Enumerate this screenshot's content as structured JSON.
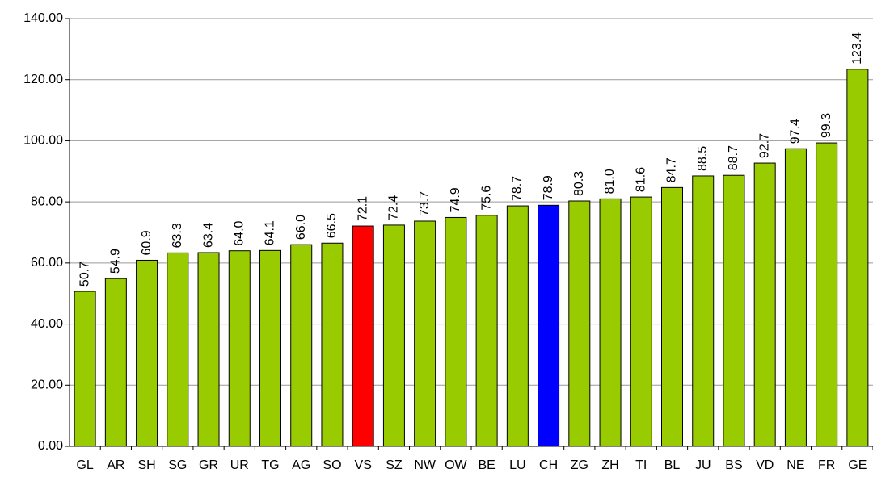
{
  "chart_data": {
    "type": "bar",
    "categories": [
      "GL",
      "AR",
      "SH",
      "SG",
      "GR",
      "UR",
      "TG",
      "AG",
      "SO",
      "VS",
      "SZ",
      "NW",
      "OW",
      "BE",
      "LU",
      "CH",
      "ZG",
      "ZH",
      "TI",
      "BL",
      "JU",
      "BS",
      "VD",
      "NE",
      "FR",
      "GE"
    ],
    "values": [
      50.7,
      54.9,
      60.9,
      63.3,
      63.4,
      64.0,
      64.1,
      66.0,
      66.5,
      72.1,
      72.4,
      73.7,
      74.9,
      75.6,
      78.7,
      78.9,
      80.3,
      81.0,
      81.6,
      84.7,
      88.5,
      88.7,
      92.7,
      97.4,
      99.3,
      123.4
    ],
    "value_labels": [
      "50.7",
      "54.9",
      "60.9",
      "63.3",
      "63.4",
      "64.0",
      "64.1",
      "66.0",
      "66.5",
      "72.1",
      "72.4",
      "73.7",
      "74.9",
      "75.6",
      "78.7",
      "78.9",
      "80.3",
      "81.0",
      "81.6",
      "84.7",
      "88.5",
      "88.7",
      "92.7",
      "97.4",
      "99.3",
      "123.4"
    ],
    "colors": [
      "#99cc00",
      "#99cc00",
      "#99cc00",
      "#99cc00",
      "#99cc00",
      "#99cc00",
      "#99cc00",
      "#99cc00",
      "#99cc00",
      "#ff0000",
      "#99cc00",
      "#99cc00",
      "#99cc00",
      "#99cc00",
      "#99cc00",
      "#0000ff",
      "#99cc00",
      "#99cc00",
      "#99cc00",
      "#99cc00",
      "#99cc00",
      "#99cc00",
      "#99cc00",
      "#99cc00",
      "#99cc00",
      "#99cc00"
    ],
    "ylim": [
      0,
      140
    ],
    "yticks": [
      {
        "value": 0,
        "label": "0.00"
      },
      {
        "value": 20,
        "label": "20.00"
      },
      {
        "value": 40,
        "label": "40.00"
      },
      {
        "value": 60,
        "label": "60.00"
      },
      {
        "value": 80,
        "label": "80.00"
      },
      {
        "value": 100,
        "label": "100.00"
      },
      {
        "value": 120,
        "label": "120.00"
      },
      {
        "value": 140,
        "label": "140.00"
      }
    ],
    "grid": true
  }
}
